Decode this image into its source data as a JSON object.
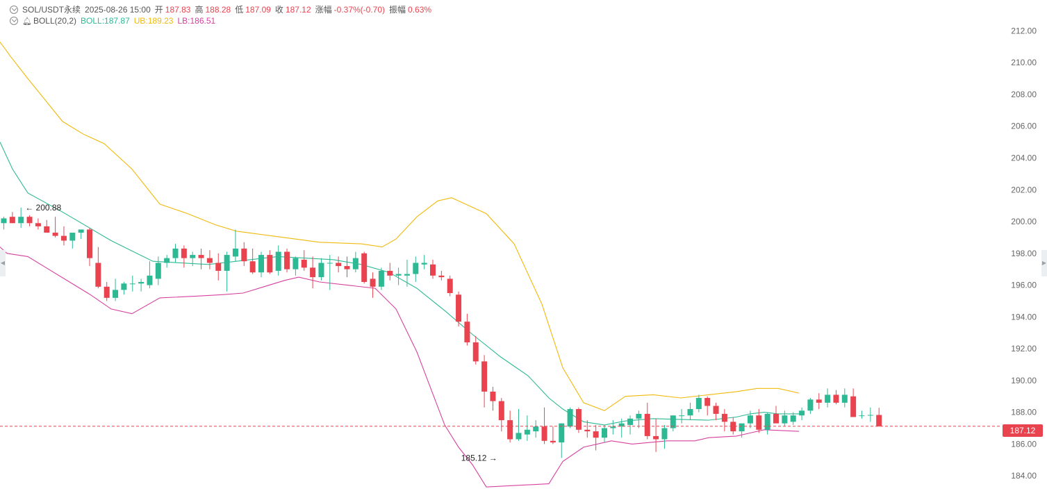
{
  "header": {
    "symbol": "SOL/USDT永续",
    "datetime": "2025-08-26 15:00",
    "open_label": "开",
    "open": "187.83",
    "high_label": "高",
    "high": "188.28",
    "low_label": "低",
    "low": "187.09",
    "close_label": "收",
    "close": "187.12",
    "change_label": "涨幅",
    "change": "-0.37%(-0.70)",
    "amp_label": "振幅",
    "amp": "0.63%"
  },
  "indicator": {
    "name": "BOLL(20,2)",
    "boll": "BOLL:187.87",
    "ub": "UB:189.23",
    "lb": "LB:186.51"
  },
  "price_tag": "187.12",
  "colors": {
    "up": "#2cb994",
    "down": "#e9434f",
    "boll": "#2cb994",
    "ub": "#f0b90b",
    "lb": "#d6409f"
  },
  "chart_data": {
    "type": "candlestick",
    "ylim": [
      183.7,
      212.5
    ],
    "yticks": [
      "212.00",
      "210.00",
      "208.00",
      "206.00",
      "204.00",
      "202.00",
      "200.00",
      "198.00",
      "196.00",
      "194.00",
      "192.00",
      "190.00",
      "188.00",
      "186.00",
      "184.00"
    ],
    "last_price": 187.12,
    "annotations": [
      {
        "text": "← 200.88",
        "price": 200.88,
        "candle": 2,
        "side": "right"
      },
      {
        "text": "185.12 →",
        "price": 185.12,
        "candle": 58,
        "side": "left"
      }
    ],
    "candles": [
      [
        199.9,
        200.3,
        199.5,
        200.2
      ],
      [
        200.3,
        200.6,
        199.9,
        199.9
      ],
      [
        199.9,
        200.88,
        199.6,
        200.3
      ],
      [
        200.3,
        200.4,
        199.7,
        199.9
      ],
      [
        199.9,
        200.2,
        199.5,
        199.7
      ],
      [
        199.7,
        200.1,
        199.3,
        199.3
      ],
      [
        199.3,
        200.3,
        199.0,
        199.1
      ],
      [
        199.1,
        199.7,
        198.5,
        198.8
      ],
      [
        198.8,
        199.2,
        198.3,
        199.3
      ],
      [
        199.3,
        199.5,
        198.9,
        199.5
      ],
      [
        199.5,
        199.6,
        197.2,
        197.7
      ],
      [
        197.4,
        198.4,
        195.8,
        195.9
      ],
      [
        195.9,
        196.2,
        195.0,
        195.2
      ],
      [
        195.2,
        196.4,
        195.0,
        195.7
      ],
      [
        195.7,
        196.2,
        195.4,
        196.1
      ],
      [
        196.1,
        196.6,
        195.6,
        196.1
      ],
      [
        196.1,
        196.4,
        195.6,
        196.2
      ],
      [
        196.0,
        197.5,
        195.8,
        196.6
      ],
      [
        196.4,
        197.8,
        196.0,
        197.4
      ],
      [
        197.4,
        197.9,
        197.1,
        197.7
      ],
      [
        197.7,
        198.6,
        197.4,
        198.3
      ],
      [
        198.3,
        198.5,
        197.1,
        197.7
      ],
      [
        197.7,
        198.1,
        197.2,
        197.9
      ],
      [
        197.9,
        198.3,
        197.0,
        197.7
      ],
      [
        197.7,
        198.2,
        197.0,
        197.4
      ],
      [
        197.4,
        198.0,
        196.3,
        196.9
      ],
      [
        196.9,
        198.1,
        195.6,
        197.9
      ],
      [
        197.8,
        199.5,
        197.5,
        198.3
      ],
      [
        198.3,
        198.7,
        197.2,
        197.5
      ],
      [
        197.5,
        198.3,
        196.7,
        196.8
      ],
      [
        196.8,
        198.1,
        196.5,
        197.9
      ],
      [
        197.9,
        198.2,
        196.7,
        196.8
      ],
      [
        196.9,
        198.5,
        196.6,
        198.1
      ],
      [
        198.1,
        198.3,
        196.8,
        197.0
      ],
      [
        197.0,
        197.8,
        196.6,
        197.7
      ],
      [
        197.6,
        198.2,
        196.9,
        197.1
      ],
      [
        197.1,
        197.8,
        195.8,
        196.5
      ],
      [
        196.5,
        197.7,
        196.3,
        197.4
      ],
      [
        197.4,
        197.9,
        195.7,
        197.4
      ],
      [
        197.4,
        197.8,
        196.8,
        197.2
      ],
      [
        197.2,
        197.8,
        196.5,
        197.0
      ],
      [
        197.0,
        198.1,
        196.8,
        197.7
      ],
      [
        198.0,
        198.1,
        196.1,
        196.2
      ],
      [
        196.4,
        196.8,
        195.2,
        195.9
      ],
      [
        195.9,
        197.1,
        195.7,
        196.9
      ],
      [
        196.9,
        197.4,
        196.3,
        196.6
      ],
      [
        196.6,
        197.1,
        196.0,
        196.7
      ],
      [
        196.6,
        197.6,
        195.9,
        196.7
      ],
      [
        196.7,
        197.8,
        196.2,
        197.4
      ],
      [
        197.3,
        197.9,
        197.0,
        197.4
      ],
      [
        197.3,
        197.6,
        196.4,
        196.6
      ],
      [
        196.6,
        196.9,
        196.3,
        196.5
      ],
      [
        196.4,
        196.6,
        195.3,
        195.5
      ],
      [
        195.4,
        195.6,
        193.4,
        193.7
      ],
      [
        193.7,
        194.2,
        192.2,
        192.4
      ],
      [
        192.4,
        192.8,
        191.0,
        191.2
      ],
      [
        191.2,
        191.6,
        188.3,
        189.3
      ],
      [
        189.3,
        189.6,
        188.1,
        188.7
      ],
      [
        188.7,
        188.9,
        186.8,
        187.5
      ],
      [
        187.5,
        188.1,
        186.1,
        186.3
      ],
      [
        186.3,
        188.2,
        186.2,
        186.7
      ],
      [
        186.6,
        187.8,
        186.2,
        186.9
      ],
      [
        186.8,
        187.5,
        186.4,
        187.1
      ],
      [
        187.1,
        188.3,
        186.0,
        186.2
      ],
      [
        186.2,
        187.1,
        186.0,
        186.1
      ],
      [
        186.1,
        187.3,
        185.12,
        187.3
      ],
      [
        187.1,
        188.3,
        187.0,
        188.2
      ],
      [
        188.2,
        188.3,
        186.7,
        186.9
      ],
      [
        186.9,
        187.5,
        186.4,
        186.8
      ],
      [
        186.8,
        187.2,
        185.6,
        186.4
      ],
      [
        186.4,
        187.2,
        186.1,
        187.0
      ],
      [
        187.0,
        187.5,
        186.6,
        187.1
      ],
      [
        187.1,
        187.6,
        186.4,
        187.3
      ],
      [
        187.2,
        187.8,
        186.6,
        187.6
      ],
      [
        187.6,
        188.1,
        187.0,
        187.9
      ],
      [
        187.9,
        188.6,
        186.3,
        186.5
      ],
      [
        186.5,
        187.6,
        185.5,
        186.3
      ],
      [
        186.3,
        187.2,
        185.7,
        187.0
      ],
      [
        187.0,
        187.6,
        186.8,
        187.8
      ],
      [
        187.8,
        188.2,
        187.3,
        187.8
      ],
      [
        187.8,
        188.6,
        187.5,
        188.2
      ],
      [
        188.2,
        189.1,
        188.0,
        188.9
      ],
      [
        188.9,
        189.0,
        187.8,
        188.4
      ],
      [
        188.4,
        188.6,
        187.5,
        187.9
      ],
      [
        187.9,
        188.2,
        186.8,
        187.4
      ],
      [
        187.4,
        187.7,
        186.6,
        186.8
      ],
      [
        186.8,
        187.2,
        186.4,
        187.3
      ],
      [
        187.3,
        188.1,
        187.0,
        187.8
      ],
      [
        187.8,
        188.2,
        186.7,
        186.9
      ],
      [
        186.9,
        188.0,
        186.6,
        187.9
      ],
      [
        187.9,
        188.4,
        187.4,
        187.3
      ],
      [
        187.3,
        188.1,
        187.1,
        187.8
      ],
      [
        187.4,
        188.0,
        187.2,
        187.8
      ],
      [
        187.8,
        188.3,
        187.5,
        188.1
      ],
      [
        188.1,
        188.9,
        187.9,
        188.8
      ],
      [
        188.8,
        189.2,
        188.2,
        188.6
      ],
      [
        188.6,
        189.5,
        188.3,
        189.1
      ],
      [
        189.1,
        189.4,
        188.5,
        188.6
      ],
      [
        188.6,
        189.5,
        188.3,
        189.1
      ],
      [
        189.0,
        189.5,
        187.8,
        187.7
      ],
      [
        187.8,
        188.1,
        187.6,
        187.8
      ],
      [
        187.8,
        188.3,
        187.4,
        187.83
      ],
      [
        187.83,
        188.28,
        187.09,
        187.12
      ]
    ],
    "boll": [
      [
        0,
        205.0
      ],
      [
        18,
        203.3
      ],
      [
        40,
        201.8
      ],
      [
        90,
        200.6
      ],
      [
        160,
        198.8
      ],
      [
        220,
        197.5
      ],
      [
        300,
        197.3
      ],
      [
        360,
        197.6
      ],
      [
        400,
        197.8
      ],
      [
        440,
        197.7
      ],
      [
        480,
        197.6
      ],
      [
        520,
        197.3
      ],
      [
        560,
        196.8
      ],
      [
        600,
        195.8
      ],
      [
        640,
        194.4
      ],
      [
        680,
        192.9
      ],
      [
        720,
        191.5
      ],
      [
        760,
        190.3
      ],
      [
        790,
        188.9
      ],
      [
        810,
        188.2
      ],
      [
        840,
        187.4
      ],
      [
        870,
        187.2
      ],
      [
        900,
        187.45
      ],
      [
        940,
        187.6
      ],
      [
        980,
        187.55
      ],
      [
        1020,
        187.5
      ],
      [
        1060,
        187.7
      ],
      [
        1080,
        187.9
      ],
      [
        1100,
        188.0
      ],
      [
        1120,
        187.9
      ],
      [
        1150,
        187.9
      ]
    ],
    "ub": [
      [
        0,
        211.3
      ],
      [
        15,
        210.4
      ],
      [
        40,
        209.0
      ],
      [
        90,
        206.3
      ],
      [
        120,
        205.5
      ],
      [
        150,
        204.9
      ],
      [
        190,
        203.3
      ],
      [
        230,
        201.1
      ],
      [
        270,
        200.5
      ],
      [
        310,
        199.8
      ],
      [
        340,
        199.4
      ],
      [
        400,
        199.05
      ],
      [
        460,
        198.7
      ],
      [
        520,
        198.6
      ],
      [
        550,
        198.4
      ],
      [
        570,
        198.9
      ],
      [
        600,
        200.3
      ],
      [
        630,
        201.3
      ],
      [
        650,
        201.5
      ],
      [
        670,
        201.1
      ],
      [
        700,
        200.5
      ],
      [
        740,
        198.6
      ],
      [
        780,
        194.8
      ],
      [
        810,
        190.8
      ],
      [
        840,
        188.6
      ],
      [
        870,
        188.1
      ],
      [
        900,
        189.0
      ],
      [
        940,
        189.1
      ],
      [
        980,
        188.9
      ],
      [
        1020,
        189.1
      ],
      [
        1060,
        189.3
      ],
      [
        1090,
        189.5
      ],
      [
        1120,
        189.5
      ],
      [
        1150,
        189.2
      ]
    ],
    "lb": [
      [
        0,
        198.4
      ],
      [
        10,
        198.0
      ],
      [
        40,
        197.8
      ],
      [
        70,
        197.0
      ],
      [
        100,
        196.2
      ],
      [
        130,
        195.4
      ],
      [
        160,
        194.5
      ],
      [
        190,
        194.2
      ],
      [
        230,
        195.2
      ],
      [
        280,
        195.3
      ],
      [
        320,
        195.4
      ],
      [
        350,
        195.5
      ],
      [
        380,
        195.9
      ],
      [
        410,
        196.3
      ],
      [
        430,
        196.5
      ],
      [
        460,
        196.2
      ],
      [
        500,
        196.0
      ],
      [
        540,
        195.8
      ],
      [
        570,
        194.5
      ],
      [
        600,
        191.8
      ],
      [
        620,
        189.5
      ],
      [
        640,
        187.2
      ],
      [
        660,
        185.8
      ],
      [
        680,
        184.7
      ],
      [
        700,
        183.3
      ],
      [
        790,
        183.5
      ],
      [
        810,
        184.9
      ],
      [
        840,
        185.8
      ],
      [
        880,
        186.2
      ],
      [
        910,
        186.0
      ],
      [
        960,
        186.2
      ],
      [
        1000,
        186.2
      ],
      [
        1020,
        186.4
      ],
      [
        1060,
        186.5
      ],
      [
        1080,
        186.7
      ],
      [
        1100,
        186.9
      ],
      [
        1150,
        186.8
      ]
    ]
  }
}
